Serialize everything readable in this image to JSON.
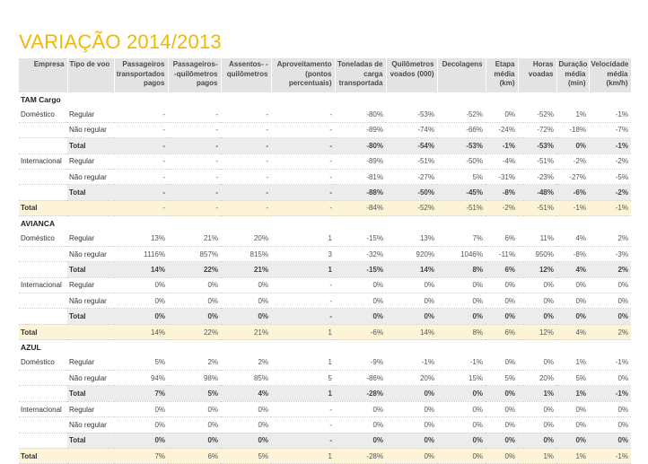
{
  "title": "VARIAÇÃO 2014/2013",
  "headers": [
    "Empresa",
    "Tipo de voo",
    "Passageiros transportados pagos",
    "Passageiros- -quilômetros pagos",
    "Assentos- -quilômetros",
    "Aproveitamento (pontos percentuais)",
    "Toneladas de carga transportada",
    "Quilômetros voados (000)",
    "Decolagens",
    "Etapa média (km)",
    "Horas voadas",
    "Duração média (min)",
    "Velocidade média (km/h)"
  ],
  "companies": [
    {
      "name": "TAM Cargo",
      "sections": [
        {
          "segment": "Doméstico",
          "rows": [
            {
              "tipo": "Regular",
              "values": [
                "-",
                "-",
                "-",
                "-",
                "-80%",
                "-53%",
                "-52%",
                "0%",
                "-52%",
                "1%",
                "-1%"
              ]
            },
            {
              "tipo": "Não regular",
              "values": [
                "-",
                "-",
                "-",
                "-",
                "-89%",
                "-74%",
                "-66%",
                "-24%",
                "-72%",
                "-18%",
                "-7%"
              ]
            },
            {
              "tipo": "Total",
              "values": [
                "-",
                "-",
                "-",
                "-",
                "-80%",
                "-54%",
                "-53%",
                "-1%",
                "-53%",
                "0%",
                "-1%"
              ]
            }
          ]
        },
        {
          "segment": "Internacional",
          "rows": [
            {
              "tipo": "Regular",
              "values": [
                "-",
                "-",
                "-",
                "-",
                "-89%",
                "-51%",
                "-50%",
                "-4%",
                "-51%",
                "-2%",
                "-2%"
              ]
            },
            {
              "tipo": "Não regular",
              "values": [
                "-",
                "-",
                "-",
                "-",
                "-81%",
                "-27%",
                "5%",
                "-31%",
                "-23%",
                "-27%",
                "-5%"
              ]
            },
            {
              "tipo": "Total",
              "values": [
                "-",
                "-",
                "-",
                "-",
                "-88%",
                "-50%",
                "-45%",
                "-8%",
                "-48%",
                "-6%",
                "-2%"
              ]
            }
          ]
        }
      ],
      "total_label": "Total",
      "total": [
        "-",
        "-",
        "-",
        "-",
        "-84%",
        "-52%",
        "-51%",
        "-2%",
        "-51%",
        "-1%",
        "-1%"
      ]
    },
    {
      "name": "AVIANCA",
      "sections": [
        {
          "segment": "Doméstico",
          "rows": [
            {
              "tipo": "Regular",
              "values": [
                "13%",
                "21%",
                "20%",
                "1",
                "-15%",
                "13%",
                "7%",
                "6%",
                "11%",
                "4%",
                "2%"
              ]
            },
            {
              "tipo": "Não regular",
              "values": [
                "1116%",
                "857%",
                "815%",
                "3",
                "-32%",
                "920%",
                "1046%",
                "-11%",
                "950%",
                "-8%",
                "-3%"
              ]
            },
            {
              "tipo": "Total",
              "values": [
                "14%",
                "22%",
                "21%",
                "1",
                "-15%",
                "14%",
                "8%",
                "6%",
                "12%",
                "4%",
                "2%"
              ]
            }
          ]
        },
        {
          "segment": "Internacional",
          "rows": [
            {
              "tipo": "Regular",
              "values": [
                "0%",
                "0%",
                "0%",
                "-",
                "0%",
                "0%",
                "0%",
                "0%",
                "0%",
                "0%",
                "0%"
              ]
            },
            {
              "tipo": "Não regular",
              "values": [
                "0%",
                "0%",
                "0%",
                "-",
                "0%",
                "0%",
                "0%",
                "0%",
                "0%",
                "0%",
                "0%"
              ]
            },
            {
              "tipo": "Total",
              "values": [
                "0%",
                "0%",
                "0%",
                "-",
                "0%",
                "0%",
                "0%",
                "0%",
                "0%",
                "0%",
                "0%"
              ]
            }
          ]
        }
      ],
      "total_label": "Total",
      "total": [
        "14%",
        "22%",
        "21%",
        "1",
        "-6%",
        "14%",
        "8%",
        "6%",
        "12%",
        "4%",
        "2%"
      ]
    },
    {
      "name": "AZUL",
      "sections": [
        {
          "segment": "Doméstico",
          "rows": [
            {
              "tipo": "Regular",
              "values": [
                "5%",
                "2%",
                "2%",
                "1",
                "-9%",
                "-1%",
                "-1%",
                "0%",
                "0%",
                "1%",
                "-1%"
              ]
            },
            {
              "tipo": "Não regular",
              "values": [
                "94%",
                "98%",
                "85%",
                "5",
                "-86%",
                "20%",
                "15%",
                "5%",
                "20%",
                "5%",
                "0%"
              ]
            },
            {
              "tipo": "Total",
              "values": [
                "7%",
                "5%",
                "4%",
                "1",
                "-28%",
                "0%",
                "0%",
                "0%",
                "1%",
                "1%",
                "-1%"
              ]
            }
          ]
        },
        {
          "segment": "Internacional",
          "rows": [
            {
              "tipo": "Regular",
              "values": [
                "0%",
                "0%",
                "0%",
                "-",
                "0%",
                "0%",
                "0%",
                "0%",
                "0%",
                "0%",
                "0%"
              ]
            },
            {
              "tipo": "Não regular",
              "values": [
                "0%",
                "0%",
                "0%",
                "-",
                "0%",
                "0%",
                "0%",
                "0%",
                "0%",
                "0%",
                "0%"
              ]
            },
            {
              "tipo": "Total",
              "values": [
                "0%",
                "0%",
                "0%",
                "-",
                "0%",
                "0%",
                "0%",
                "0%",
                "0%",
                "0%",
                "0%"
              ]
            }
          ]
        }
      ],
      "total_label": "Total",
      "total": [
        "7%",
        "6%",
        "5%",
        "1",
        "-28%",
        "0%",
        "0%",
        "0%",
        "1%",
        "1%",
        "-1%"
      ]
    }
  ]
}
